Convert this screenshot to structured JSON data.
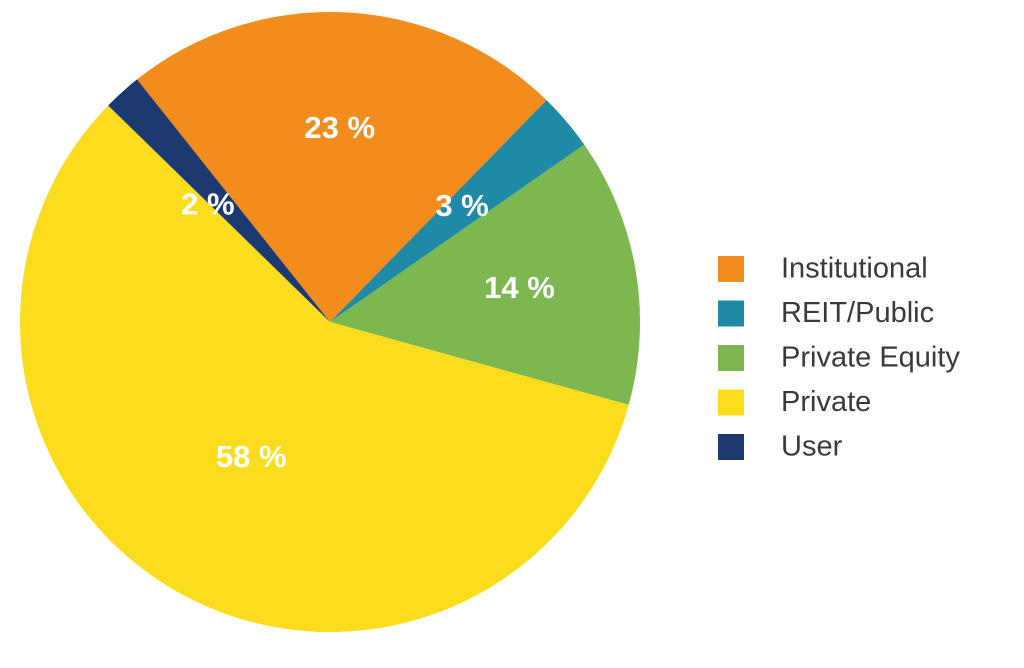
{
  "chart_data": {
    "type": "pie",
    "title": "",
    "start": "clockwise from the User slice near 12 o'clock",
    "slices": [
      {
        "label": "Institutional",
        "value": 23,
        "display": "23 %",
        "color": "#F28C1C"
      },
      {
        "label": "REIT/Public",
        "value": 3,
        "display": "3 %",
        "color": "#1F8AA6"
      },
      {
        "label": "Private Equity",
        "value": 14,
        "display": "14 %",
        "color": "#7CB84F"
      },
      {
        "label": "Private",
        "value": 58,
        "display": "58 %",
        "color": "#FBDD1E"
      },
      {
        "label": "User",
        "value": 2,
        "display": "2 %",
        "color": "#1C3A70"
      }
    ],
    "legend": {
      "position": "right",
      "entries": [
        "Institutional",
        "REIT/Public",
        "Private Equity",
        "Private",
        "User"
      ]
    }
  }
}
